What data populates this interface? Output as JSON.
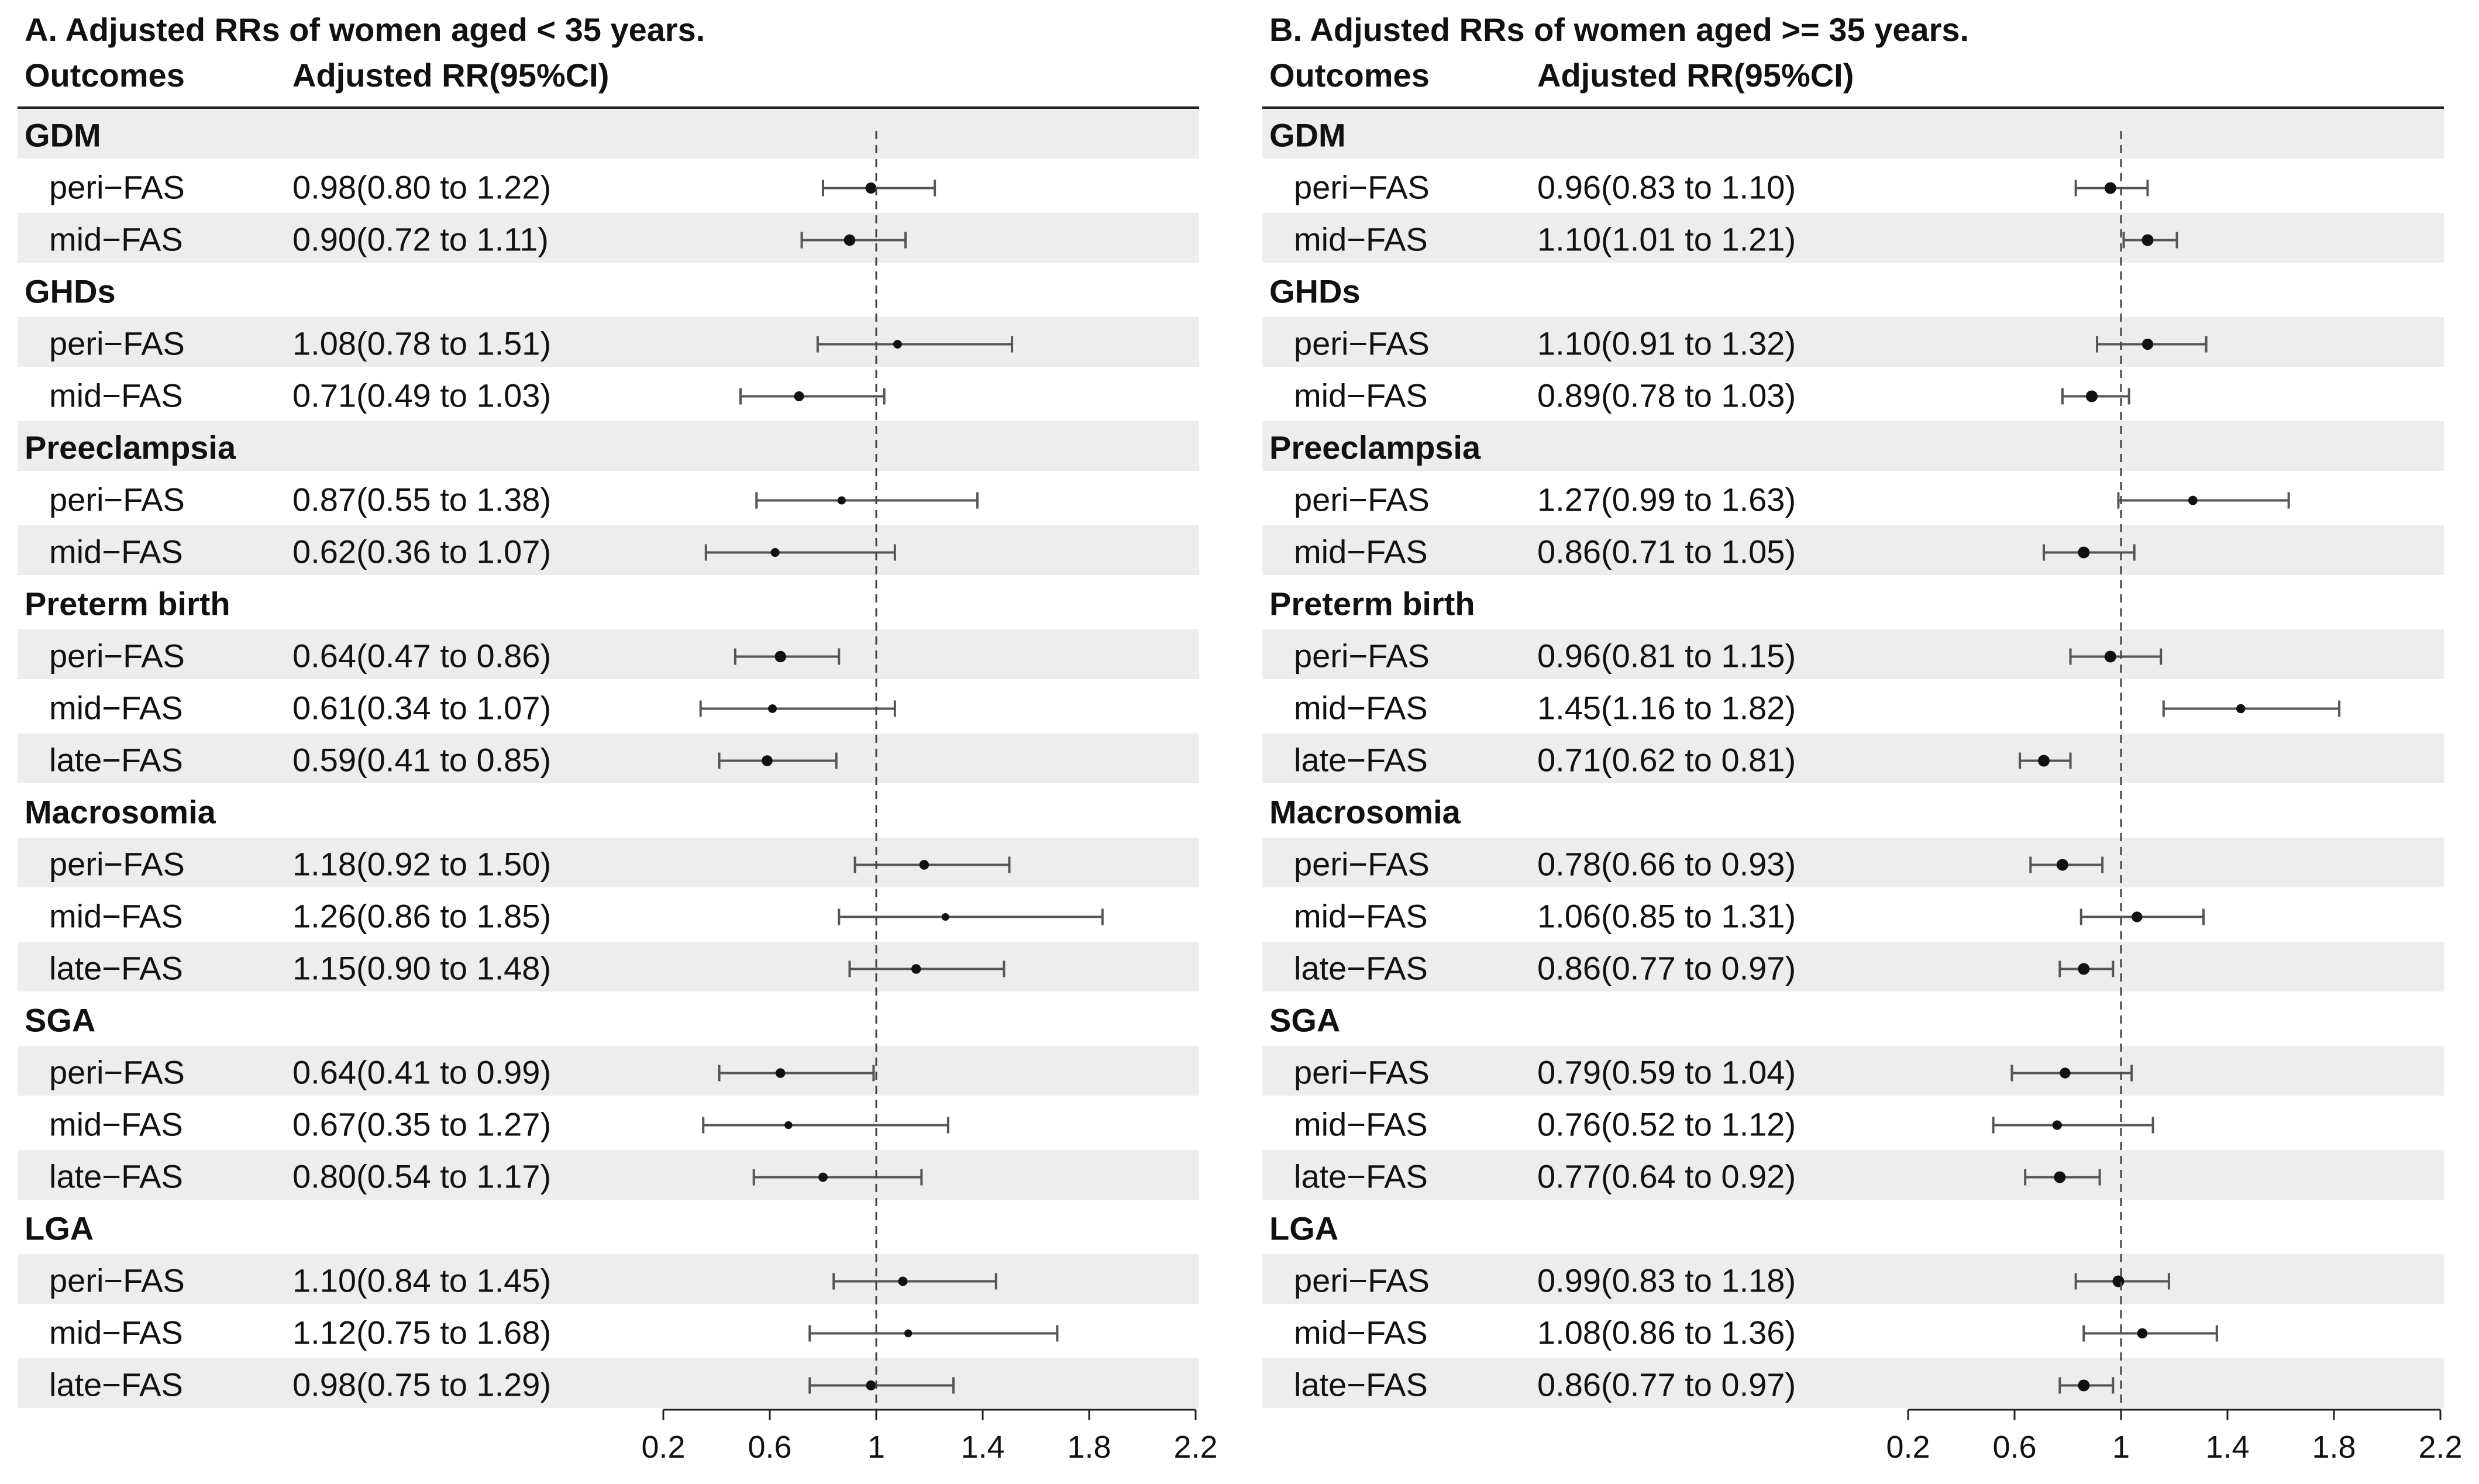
{
  "chart_data": [
    {
      "type": "forest",
      "title": "A. Adjusted RRs of women aged < 35 years.",
      "col_outcomes": "Outcomes",
      "col_rr": "Adjusted RR(95%CI)",
      "reference_line": 1,
      "xlim": [
        0.2,
        2.2
      ],
      "xticks": [
        "0.2",
        "0.6",
        "1",
        "1.4",
        "1.8",
        "2.2"
      ],
      "groups": [
        {
          "name": "GDM",
          "rows": [
            {
              "label": "peri−FAS",
              "text": "0.98(0.80 to 1.22)",
              "est": 0.98,
              "lo": 0.8,
              "hi": 1.22
            },
            {
              "label": "mid−FAS",
              "text": "0.90(0.72 to 1.11)",
              "est": 0.9,
              "lo": 0.72,
              "hi": 1.11
            }
          ]
        },
        {
          "name": "GHDs",
          "rows": [
            {
              "label": "peri−FAS",
              "text": "1.08(0.78 to 1.51)",
              "est": 1.08,
              "lo": 0.78,
              "hi": 1.51
            },
            {
              "label": "mid−FAS",
              "text": "0.71(0.49 to 1.03)",
              "est": 0.71,
              "lo": 0.49,
              "hi": 1.03
            }
          ]
        },
        {
          "name": "Preeclampsia",
          "rows": [
            {
              "label": "peri−FAS",
              "text": "0.87(0.55 to 1.38)",
              "est": 0.87,
              "lo": 0.55,
              "hi": 1.38
            },
            {
              "label": "mid−FAS",
              "text": "0.62(0.36 to 1.07)",
              "est": 0.62,
              "lo": 0.36,
              "hi": 1.07
            }
          ]
        },
        {
          "name": "Preterm birth",
          "rows": [
            {
              "label": "peri−FAS",
              "text": "0.64(0.47 to 0.86)",
              "est": 0.64,
              "lo": 0.47,
              "hi": 0.86
            },
            {
              "label": "mid−FAS",
              "text": "0.61(0.34 to 1.07)",
              "est": 0.61,
              "lo": 0.34,
              "hi": 1.07
            },
            {
              "label": "late−FAS",
              "text": "0.59(0.41 to 0.85)",
              "est": 0.59,
              "lo": 0.41,
              "hi": 0.85
            }
          ]
        },
        {
          "name": "Macrosomia",
          "rows": [
            {
              "label": "peri−FAS",
              "text": "1.18(0.92 to 1.50)",
              "est": 1.18,
              "lo": 0.92,
              "hi": 1.5
            },
            {
              "label": "mid−FAS",
              "text": "1.26(0.86 to 1.85)",
              "est": 1.26,
              "lo": 0.86,
              "hi": 1.85
            },
            {
              "label": "late−FAS",
              "text": "1.15(0.90 to 1.48)",
              "est": 1.15,
              "lo": 0.9,
              "hi": 1.48
            }
          ]
        },
        {
          "name": "SGA",
          "rows": [
            {
              "label": "peri−FAS",
              "text": "0.64(0.41 to 0.99)",
              "est": 0.64,
              "lo": 0.41,
              "hi": 0.99
            },
            {
              "label": "mid−FAS",
              "text": "0.67(0.35 to 1.27)",
              "est": 0.67,
              "lo": 0.35,
              "hi": 1.27
            },
            {
              "label": "late−FAS",
              "text": "0.80(0.54 to 1.17)",
              "est": 0.8,
              "lo": 0.54,
              "hi": 1.17
            }
          ]
        },
        {
          "name": "LGA",
          "rows": [
            {
              "label": "peri−FAS",
              "text": "1.10(0.84 to 1.45)",
              "est": 1.1,
              "lo": 0.84,
              "hi": 1.45
            },
            {
              "label": "mid−FAS",
              "text": "1.12(0.75 to 1.68)",
              "est": 1.12,
              "lo": 0.75,
              "hi": 1.68
            },
            {
              "label": "late−FAS",
              "text": "0.98(0.75 to 1.29)",
              "est": 0.98,
              "lo": 0.75,
              "hi": 1.29
            }
          ]
        }
      ]
    },
    {
      "type": "forest",
      "title": "B. Adjusted RRs of women aged >= 35 years.",
      "col_outcomes": "Outcomes",
      "col_rr": "Adjusted RR(95%CI)",
      "reference_line": 1,
      "xlim": [
        0.2,
        2.2
      ],
      "xticks": [
        "0.2",
        "0.6",
        "1",
        "1.4",
        "1.8",
        "2.2"
      ],
      "groups": [
        {
          "name": "GDM",
          "rows": [
            {
              "label": "peri−FAS",
              "text": "0.96(0.83 to 1.10)",
              "est": 0.96,
              "lo": 0.83,
              "hi": 1.1
            },
            {
              "label": "mid−FAS",
              "text": "1.10(1.01 to 1.21)",
              "est": 1.1,
              "lo": 1.01,
              "hi": 1.21
            }
          ]
        },
        {
          "name": "GHDs",
          "rows": [
            {
              "label": "peri−FAS",
              "text": "1.10(0.91 to 1.32)",
              "est": 1.1,
              "lo": 0.91,
              "hi": 1.32
            },
            {
              "label": "mid−FAS",
              "text": "0.89(0.78 to 1.03)",
              "est": 0.89,
              "lo": 0.78,
              "hi": 1.03
            }
          ]
        },
        {
          "name": "Preeclampsia",
          "rows": [
            {
              "label": "peri−FAS",
              "text": "1.27(0.99 to 1.63)",
              "est": 1.27,
              "lo": 0.99,
              "hi": 1.63
            },
            {
              "label": "mid−FAS",
              "text": "0.86(0.71 to 1.05)",
              "est": 0.86,
              "lo": 0.71,
              "hi": 1.05
            }
          ]
        },
        {
          "name": "Preterm birth",
          "rows": [
            {
              "label": "peri−FAS",
              "text": "0.96(0.81 to 1.15)",
              "est": 0.96,
              "lo": 0.81,
              "hi": 1.15
            },
            {
              "label": "mid−FAS",
              "text": "1.45(1.16 to 1.82)",
              "est": 1.45,
              "lo": 1.16,
              "hi": 1.82
            },
            {
              "label": "late−FAS",
              "text": "0.71(0.62 to 0.81)",
              "est": 0.71,
              "lo": 0.62,
              "hi": 0.81
            }
          ]
        },
        {
          "name": "Macrosomia",
          "rows": [
            {
              "label": "peri−FAS",
              "text": "0.78(0.66 to 0.93)",
              "est": 0.78,
              "lo": 0.66,
              "hi": 0.93
            },
            {
              "label": "mid−FAS",
              "text": "1.06(0.85 to 1.31)",
              "est": 1.06,
              "lo": 0.85,
              "hi": 1.31
            },
            {
              "label": "late−FAS",
              "text": "0.86(0.77 to 0.97)",
              "est": 0.86,
              "lo": 0.77,
              "hi": 0.97
            }
          ]
        },
        {
          "name": "SGA",
          "rows": [
            {
              "label": "peri−FAS",
              "text": "0.79(0.59 to 1.04)",
              "est": 0.79,
              "lo": 0.59,
              "hi": 1.04
            },
            {
              "label": "mid−FAS",
              "text": "0.76(0.52 to 1.12)",
              "est": 0.76,
              "lo": 0.52,
              "hi": 1.12
            },
            {
              "label": "late−FAS",
              "text": "0.77(0.64 to 0.92)",
              "est": 0.77,
              "lo": 0.64,
              "hi": 0.92
            }
          ]
        },
        {
          "name": "LGA",
          "rows": [
            {
              "label": "peri−FAS",
              "text": "0.99(0.83 to 1.18)",
              "est": 0.99,
              "lo": 0.83,
              "hi": 1.18
            },
            {
              "label": "mid−FAS",
              "text": "1.08(0.86 to 1.36)",
              "est": 1.08,
              "lo": 0.86,
              "hi": 1.36
            },
            {
              "label": "late−FAS",
              "text": "0.86(0.77 to 0.97)",
              "est": 0.86,
              "lo": 0.77,
              "hi": 0.97
            }
          ]
        }
      ]
    }
  ]
}
